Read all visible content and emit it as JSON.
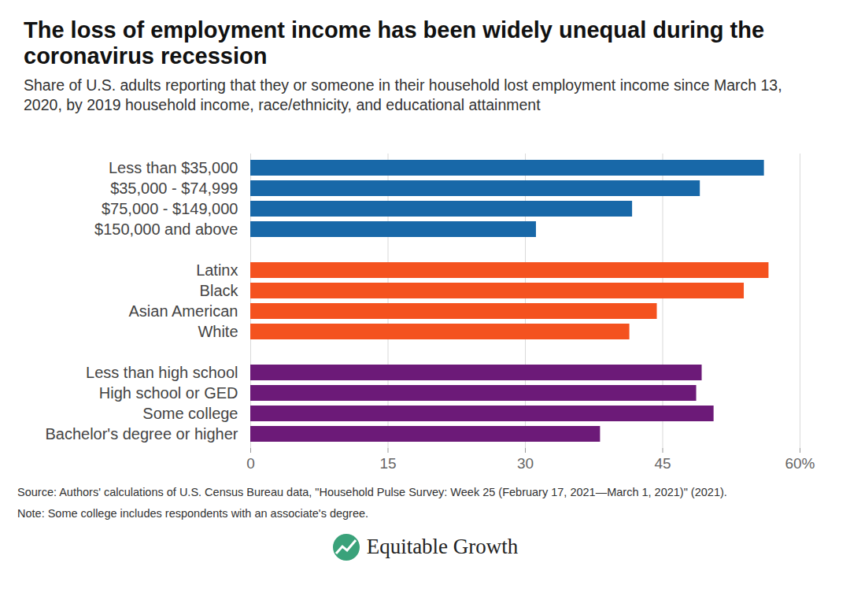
{
  "chart_data": {
    "type": "bar",
    "orientation": "horizontal",
    "title": "The loss of employment income has been widely unequal during the coronavirus recession",
    "subtitle": "Share of U.S. adults reporting that they or someone in their household lost employment income since March 13, 2020, by 2019 household income, race/ethnicity, and educational attainment",
    "categories": [
      "Less than $35,000",
      "$35,000 - $74,999",
      "$75,000 - $149,000",
      "$150,000 and above",
      null,
      "Latinx",
      "Black",
      "Asian American",
      "White",
      null,
      "Less than high school",
      "High school or GED",
      "Some college",
      "Bachelor's degree or higher"
    ],
    "values": [
      56.1,
      49.1,
      41.7,
      31.2,
      null,
      56.6,
      53.9,
      44.4,
      41.4,
      null,
      49.3,
      48.7,
      50.6,
      38.2
    ],
    "colors": [
      "#1868a8",
      "#1868a8",
      "#1868a8",
      "#1868a8",
      null,
      "#f4521f",
      "#f4521f",
      "#f4521f",
      "#f4521f",
      null,
      "#6c1a78",
      "#6c1a78",
      "#6c1a78",
      "#6c1a78"
    ],
    "xlim": [
      0,
      60
    ],
    "xticks": [
      0,
      15,
      30,
      45,
      {
        "value": 60,
        "label": "60%"
      }
    ],
    "grid": true,
    "source": "Source: Authors' calculations of U.S. Census Bureau data, \"Household Pulse Survey: Week 25 (February 17, 2021—March 1, 2021)\" (2021).",
    "note": "Note: Some college includes respondents with an associate's degree.",
    "brand": "Equitable Growth"
  }
}
